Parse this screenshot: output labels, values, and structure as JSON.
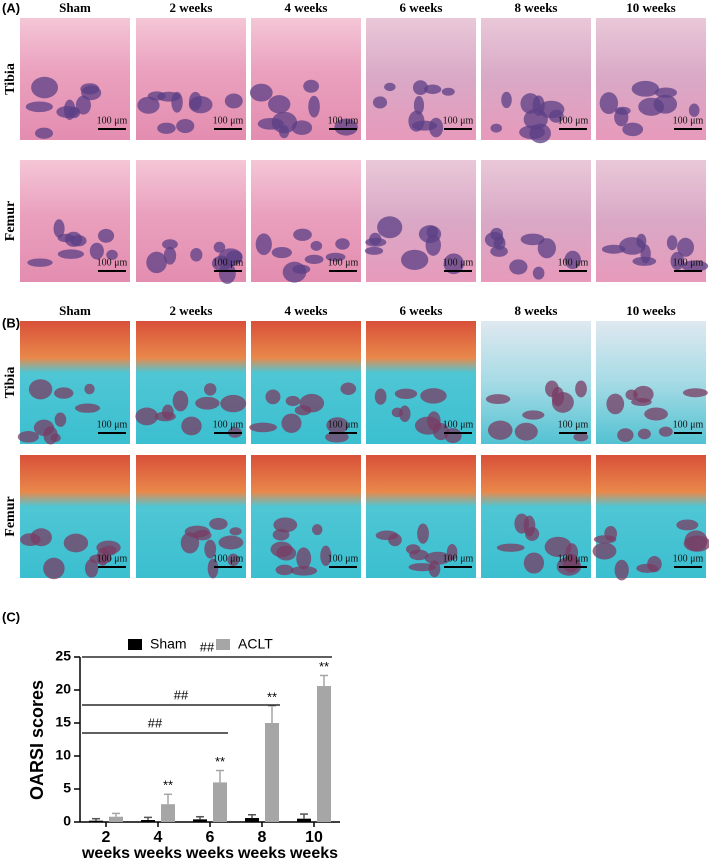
{
  "panel_a": {
    "label": "(A)",
    "columns": [
      "Sham",
      "2 weeks",
      "4 weeks",
      "6 weeks",
      "8 weeks",
      "10 weeks"
    ],
    "rows": [
      "Tibia",
      "Femur"
    ],
    "scale_bar": "100 μm"
  },
  "panel_b": {
    "label": "(B)",
    "columns": [
      "Sham",
      "2 weeks",
      "4 weeks",
      "6 weeks",
      "8 weeks",
      "10 weeks"
    ],
    "rows": [
      "Tibia",
      "Femur"
    ],
    "scale_bar": "100 μm"
  },
  "panel_c": {
    "label": "(C)"
  },
  "chart_data": {
    "type": "bar",
    "ylabel": "OARSI scores",
    "categories": [
      "2 weeks",
      "4 weeks",
      "6 weeks",
      "8 weeks",
      "10 weeks"
    ],
    "series": [
      {
        "name": "Sham",
        "color": "#000000",
        "values": [
          0.2,
          0.3,
          0.4,
          0.6,
          0.5
        ],
        "errors": [
          0.3,
          0.4,
          0.4,
          0.5,
          0.7
        ]
      },
      {
        "name": "ACLT",
        "color": "#a6a6a6",
        "values": [
          0.8,
          2.7,
          6.0,
          15.0,
          20.6
        ],
        "errors": [
          0.5,
          1.5,
          1.8,
          2.6,
          1.6
        ],
        "significance": [
          null,
          "**",
          "**",
          "**",
          "**"
        ]
      }
    ],
    "comparisons": [
      {
        "from": "2 weeks",
        "to": "6 weeks",
        "label": "##"
      },
      {
        "from": "2 weeks",
        "to": "8 weeks",
        "label": "##"
      },
      {
        "from": "2 weeks",
        "to": "10 weeks",
        "label": "##"
      }
    ],
    "ylim": [
      0,
      25
    ],
    "yticks": [
      0,
      5,
      10,
      15,
      20,
      25
    ]
  }
}
